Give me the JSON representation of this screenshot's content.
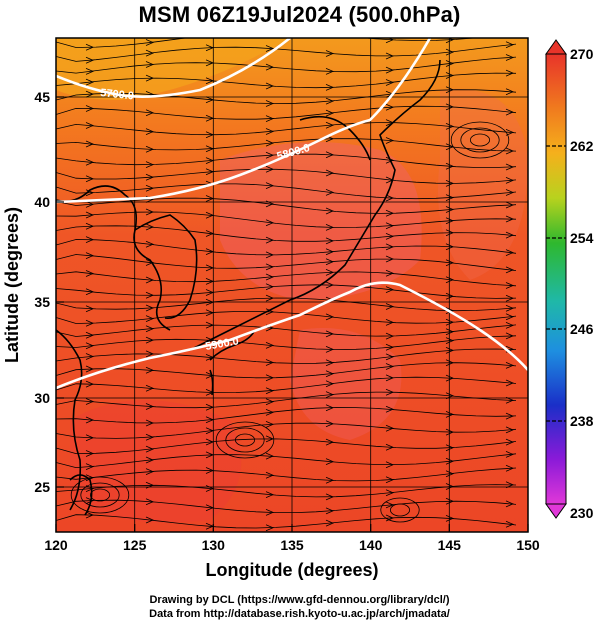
{
  "title": "MSM 06Z19Jul2024 (500.0hPa)",
  "xaxis": {
    "label": "Longitude (degrees)",
    "ticks": [
      "120",
      "125",
      "130",
      "135",
      "140",
      "145",
      "150"
    ]
  },
  "yaxis": {
    "label": "Latitude  (degrees)",
    "ticks": [
      "25",
      "30",
      "35",
      "40",
      "45"
    ]
  },
  "colorbar": {
    "ticks": [
      "270",
      "262",
      "254",
      "246",
      "238",
      "230"
    ]
  },
  "contours": [
    {
      "label": "5700.0"
    },
    {
      "label": "5800.0"
    },
    {
      "label": "5900.0"
    }
  ],
  "footer": {
    "line1": "Drawing by DCL (https://www.gfd-dennou.org/library/dcl/)",
    "line2": "Data from http://database.rish.kyoto-u.ac.jp/arch/jmadata/"
  },
  "colors": {
    "field_main": "#ee4a26",
    "field_warm_north": "#f49a1c",
    "contour": "#ffffff"
  }
}
